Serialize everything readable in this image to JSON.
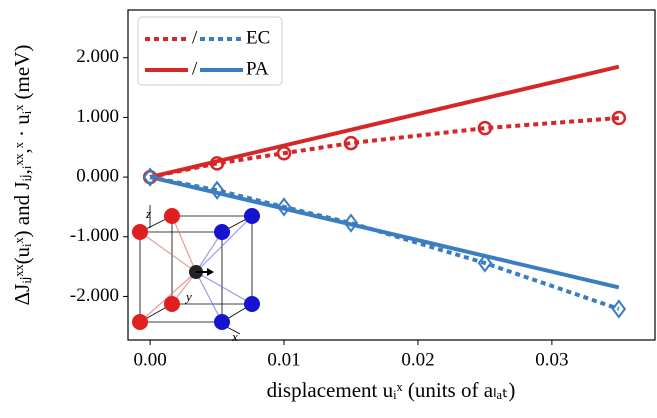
{
  "chart_data": {
    "type": "line",
    "xlabel": "displacement uᵢˣ (units of aₗₐₜ)",
    "ylabel": "ΔJᵢⱼˣˣ(uᵢˣ) and Jᵢⱼ,ᵢˣˣ,ˣ · uᵢˣ (meV)",
    "xlim": [
      -0.00165,
      0.0377
    ],
    "ylim": [
      -2.73,
      2.8
    ],
    "xticks": [
      {
        "value": 0,
        "label": "0.00"
      },
      {
        "value": 0.01,
        "label": "0.01"
      },
      {
        "value": 0.02,
        "label": "0.02"
      },
      {
        "value": 0.03,
        "label": "0.03"
      }
    ],
    "yticks": [
      {
        "value": 2,
        "label": "2.000"
      },
      {
        "value": 1,
        "label": "1.000"
      },
      {
        "value": 0,
        "label": "0.000"
      },
      {
        "value": -1,
        "label": "-1.000"
      },
      {
        "value": -2,
        "label": "-2.000"
      }
    ],
    "series": [
      {
        "color": "#d62728",
        "linestyle": "dotted",
        "marker": "circle",
        "x": [
          0,
          0.005,
          0.01,
          0.015,
          0.025,
          0.035
        ],
        "values": [
          0,
          0.23,
          0.4,
          0.57,
          0.82,
          0.99
        ]
      },
      {
        "color": "#3a7dc0",
        "linestyle": "dotted",
        "marker": "diamond",
        "x": [
          0,
          0.005,
          0.01,
          0.015,
          0.025,
          0.035
        ],
        "values": [
          0,
          -0.22,
          -0.5,
          -0.77,
          -1.44,
          -2.21
        ]
      },
      {
        "color": "#d62728",
        "linestyle": "solid",
        "x": [
          0,
          0.035
        ],
        "values": [
          0,
          1.85
        ]
      },
      {
        "color": "#3a7dc0",
        "linestyle": "solid",
        "x": [
          0,
          0.035
        ],
        "values": [
          0,
          -1.85
        ]
      }
    ],
    "legend": {
      "loc": "upper left",
      "entries": [
        {
          "separator": "/",
          "label": "EC"
        },
        {
          "separator": "/",
          "label": "PA"
        }
      ]
    },
    "inset": {
      "axis_labels": [
        "z",
        "y",
        "x"
      ]
    }
  }
}
